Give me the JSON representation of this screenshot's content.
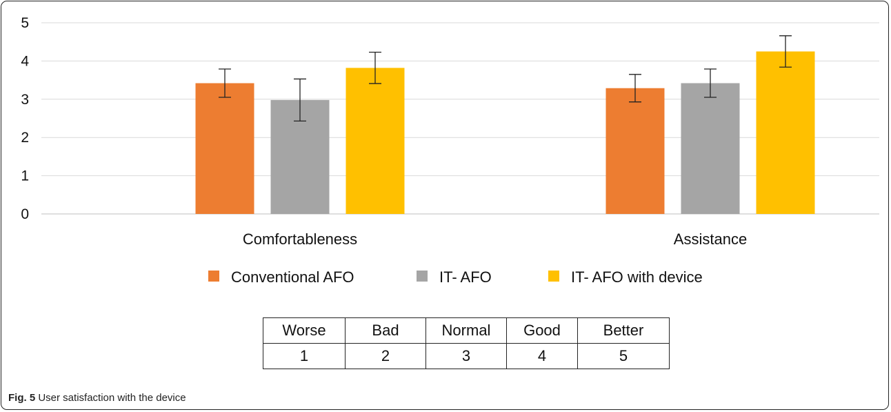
{
  "chart_data": {
    "type": "bar",
    "categories": [
      "Comfortableness",
      "Assistance"
    ],
    "series": [
      {
        "name": "Conventional AFO",
        "values": [
          3.42,
          3.29
        ],
        "error": [
          0.37,
          0.36
        ],
        "color": "#ED7D31"
      },
      {
        "name": "IT- AFO",
        "values": [
          2.98,
          3.42
        ],
        "error": [
          0.55,
          0.37
        ],
        "color": "#A5A5A5"
      },
      {
        "name": "IT- AFO with device",
        "values": [
          3.82,
          4.25
        ],
        "error": [
          0.41,
          0.41
        ],
        "color": "#FFC000"
      }
    ],
    "yticks": [
      "0",
      "1",
      "2",
      "3",
      "4",
      "5"
    ],
    "ylim": [
      0,
      5
    ],
    "grid": true,
    "legend_position": "bottom"
  },
  "scale_table": {
    "labels": [
      "Worse",
      "Bad",
      "Normal",
      "Good",
      "Better"
    ],
    "scores": [
      "1",
      "2",
      "3",
      "4",
      "5"
    ]
  },
  "caption": {
    "label": "Fig. 5",
    "text": "User satisfaction with the device"
  }
}
